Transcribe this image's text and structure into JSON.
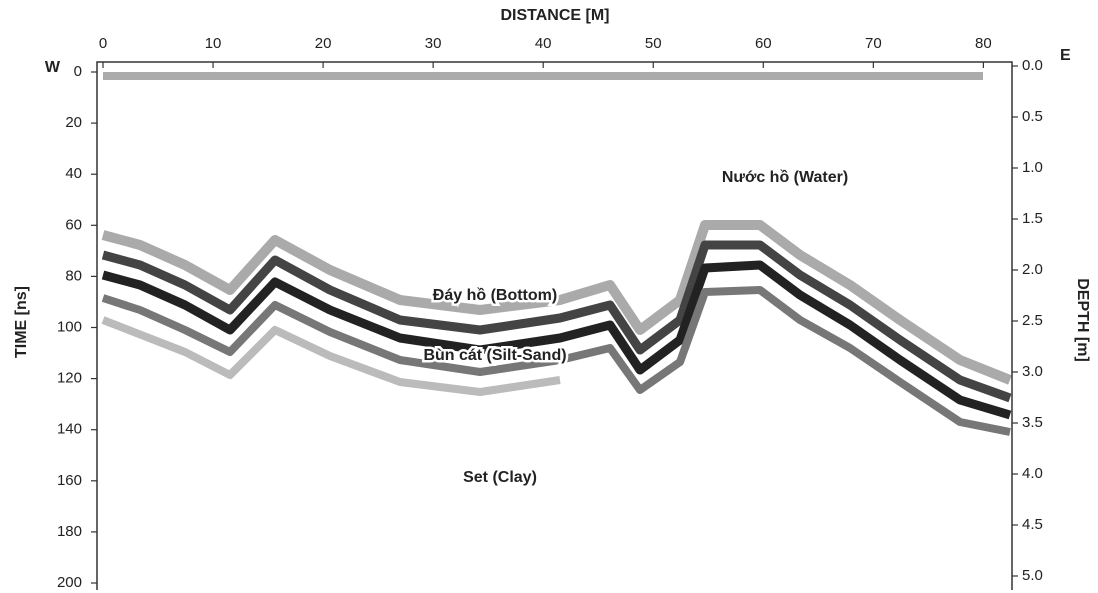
{
  "chart_data": {
    "type": "radargram",
    "title": "DISTANCE [M]",
    "y_label": "TIME [ns]",
    "y2_label": "DEPTH [m]",
    "xlim": [
      0,
      82.6
    ],
    "xticks": [
      0,
      10,
      20,
      30,
      40,
      50,
      60,
      70,
      80
    ],
    "ylim": [
      0,
      200
    ],
    "yticks": [
      0,
      20,
      40,
      60,
      80,
      100,
      120,
      140,
      160,
      180,
      200
    ],
    "y2lim": [
      0,
      5
    ],
    "y2ticks": [
      {
        "value": 0,
        "label": "0.0"
      },
      0.5,
      {
        "value": 1,
        "label": "1.0"
      },
      1.5,
      {
        "value": 2,
        "label": "2.0"
      },
      2.5,
      {
        "value": 3,
        "label": "3.0"
      },
      3.5,
      {
        "value": 4,
        "label": "4.0"
      },
      4.5,
      {
        "value": 5,
        "label": "5.0"
      }
    ],
    "annotations": [
      "W",
      "E",
      "Nước hồ (Water)",
      "Đáy hồ (Bottom)",
      "Bùn cát (Silt-Sand)",
      "Set (Clay)"
    ]
  }
}
